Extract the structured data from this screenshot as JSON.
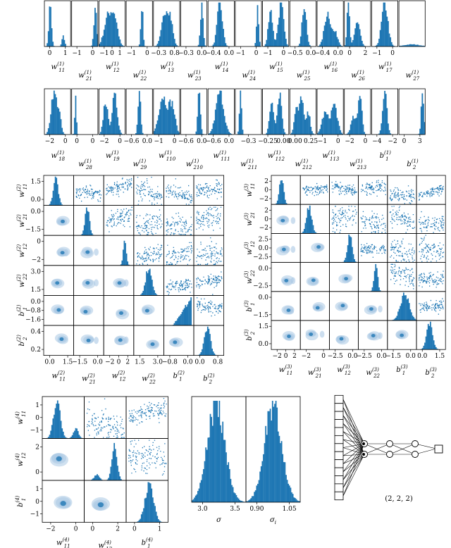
{
  "colors": {
    "bar": "#1f77b4",
    "density": "#aac8e4",
    "scatter": "#1f77b4"
  },
  "chart_data": [
    {
      "type": "histogram",
      "id": "layer1-row1",
      "panels": [
        {
          "label": "w",
          "sub": "11",
          "sup": "(1)",
          "ticks": [
            "0",
            "1"
          ]
        },
        {
          "label": "w",
          "sub": "21",
          "sup": "(1)",
          "ticks": [
            "−1",
            "0"
          ]
        },
        {
          "label": "w",
          "sub": "12",
          "sup": "(1)",
          "ticks": [
            "−1",
            "0",
            "1"
          ]
        },
        {
          "label": "w",
          "sub": "22",
          "sup": "(1)",
          "ticks": [
            "−1",
            "0"
          ]
        },
        {
          "label": "w",
          "sub": "13",
          "sup": "(1)",
          "ticks": [
            "−0.3",
            "0.8"
          ]
        },
        {
          "label": "w",
          "sub": "23",
          "sup": "(1)",
          "ticks": [
            "−0.3",
            "0.0"
          ]
        },
        {
          "label": "w",
          "sub": "14",
          "sup": "(1)",
          "ticks": [
            "−0.4",
            "0.0"
          ]
        },
        {
          "label": "w",
          "sub": "24",
          "sup": "(1)",
          "ticks": [
            "−1",
            "0"
          ]
        },
        {
          "label": "w",
          "sub": "15",
          "sup": "(1)",
          "ticks": [
            "−1",
            "0"
          ]
        },
        {
          "label": "w",
          "sub": "25",
          "sup": "(1)",
          "ticks": [
            "−0.5",
            "0.0"
          ]
        },
        {
          "label": "w",
          "sub": "16",
          "sup": "(1)",
          "ticks": [
            "−0.4",
            "0.0"
          ]
        },
        {
          "label": "w",
          "sub": "26",
          "sup": "(1)",
          "ticks": [
            "0",
            "2"
          ]
        },
        {
          "label": "w",
          "sub": "17",
          "sup": "(1)",
          "ticks": [
            "−1",
            "0"
          ]
        },
        {
          "label": "w",
          "sub": "27",
          "sup": "(1)",
          "ticks": []
        }
      ]
    },
    {
      "type": "histogram",
      "id": "layer1-row2",
      "panels": [
        {
          "label": "w",
          "sub": "18",
          "sup": "(1)",
          "ticks": [
            "−2",
            "0"
          ]
        },
        {
          "label": "w",
          "sub": "28",
          "sup": "(1)",
          "ticks": [
            "0",
            "0"
          ]
        },
        {
          "label": "w",
          "sub": "19",
          "sup": "(1)",
          "ticks": [
            "−2",
            "0"
          ]
        },
        {
          "label": "w",
          "sub": "29",
          "sup": "(1)",
          "ticks": [
            "−0.6",
            "0.0"
          ]
        },
        {
          "label": "w",
          "sub": "110",
          "sup": "(1)",
          "ticks": [
            "−1",
            "0"
          ]
        },
        {
          "label": "w",
          "sub": "210",
          "sup": "(1)",
          "ticks": [
            "−0.6",
            "0.0"
          ]
        },
        {
          "label": "w",
          "sub": "111",
          "sup": "(1)",
          "ticks": [
            "−0.6",
            "0.0"
          ]
        },
        {
          "label": "w",
          "sub": "211",
          "sup": "(1)",
          "ticks": [
            "−0.3"
          ]
        },
        {
          "label": "w",
          "sub": "112",
          "sup": "(1)",
          "ticks": [
            "−0.25",
            "0.00"
          ]
        },
        {
          "label": "w",
          "sub": "212",
          "sup": "(1)",
          "ticks": [
            "0.00",
            "0.25"
          ]
        },
        {
          "label": "w",
          "sub": "113",
          "sup": "(1)",
          "ticks": [
            "−1",
            "0"
          ]
        },
        {
          "label": "w",
          "sub": "213",
          "sup": "(1)",
          "ticks": [
            "−2",
            "0"
          ]
        },
        {
          "label": "b",
          "sub": "1",
          "sup": "(1)",
          "ticks": [
            "−4",
            "−2"
          ]
        },
        {
          "label": "b",
          "sub": "2",
          "sup": "(1)",
          "ticks": [
            "0",
            "3"
          ]
        }
      ]
    },
    {
      "type": "pairplot",
      "id": "layer2",
      "vars": [
        {
          "label": "w",
          "sub": "11",
          "sup": "(2)",
          "yticks": [
            "1.5",
            "0.0"
          ],
          "xticks": [
            "0.0",
            "1.5"
          ]
        },
        {
          "label": "w",
          "sub": "21",
          "sup": "(2)",
          "yticks": [
            "0.0",
            "−1.5"
          ],
          "xticks": [
            "−1.5",
            "0.0"
          ]
        },
        {
          "label": "w",
          "sub": "12",
          "sup": "(2)",
          "yticks": [
            "0",
            "−2"
          ],
          "xticks": [
            "−2",
            "0",
            "2"
          ]
        },
        {
          "label": "w",
          "sub": "22",
          "sup": "(2)",
          "yticks": [
            "3.0",
            "1.5"
          ],
          "xticks": [
            "1.5",
            "3.0"
          ]
        },
        {
          "label": "b",
          "sub": "1",
          "sup": "(2)",
          "yticks": [
            "0.0",
            "−0.8",
            "−1.6"
          ],
          "xticks": [
            "−0.8",
            "0.0"
          ]
        },
        {
          "label": "b",
          "sub": "2",
          "sup": "(2)",
          "yticks": [
            "0.4",
            "0.2"
          ],
          "xticks": [
            "0.0",
            "0.8"
          ]
        }
      ]
    },
    {
      "type": "pairplot",
      "id": "layer3",
      "vars": [
        {
          "label": "w",
          "sub": "11",
          "sup": "(3)",
          "yticks": [
            "2",
            "0",
            "−2"
          ],
          "xticks": [
            "−2",
            "0",
            "2"
          ]
        },
        {
          "label": "w",
          "sub": "21",
          "sup": "(3)",
          "yticks": [
            "2",
            "0",
            "−2"
          ],
          "xticks": [
            "−2",
            "0"
          ]
        },
        {
          "label": "w",
          "sub": "12",
          "sup": "(3)",
          "yticks": [
            "2.5",
            "0.0",
            "−2.5"
          ],
          "xticks": [
            "−2.5",
            "0.0"
          ]
        },
        {
          "label": "w",
          "sub": "22",
          "sup": "(3)",
          "yticks": [
            "0.0",
            "−2.5"
          ],
          "xticks": [
            "−2.5",
            "0.0"
          ]
        },
        {
          "label": "b",
          "sub": "1",
          "sup": "(3)",
          "yticks": [
            "0.0",
            "−1.5"
          ],
          "xticks": [
            "−1.5",
            "0.0"
          ]
        },
        {
          "label": "b",
          "sub": "2",
          "sup": "(3)",
          "yticks": [
            "1.5",
            "0.0"
          ],
          "xticks": [
            "0.0",
            "1.5"
          ]
        }
      ]
    },
    {
      "type": "pairplot",
      "id": "layer4",
      "vars": [
        {
          "label": "w",
          "sub": "11",
          "sup": "(4)",
          "yticks": [
            "1",
            "0",
            "−1"
          ],
          "xticks": [
            "−2",
            "0"
          ]
        },
        {
          "label": "w",
          "sub": "12",
          "sup": "(4)",
          "yticks": [
            "2",
            "0"
          ],
          "xticks": [
            "0",
            "2"
          ]
        },
        {
          "label": "b",
          "sub": "1",
          "sup": "(4)",
          "yticks": [
            "1",
            "0",
            "−1"
          ],
          "xticks": [
            "0",
            "1"
          ]
        }
      ]
    },
    {
      "type": "histogram",
      "id": "noise",
      "panels": [
        {
          "label": "σ",
          "sub": "",
          "sup": "",
          "ticks": [
            "3.0",
            "3.5"
          ]
        },
        {
          "label": "σ",
          "sub": "i",
          "sup": "",
          "ticks": [
            "0.90",
            "1.05"
          ]
        }
      ]
    }
  ],
  "diagram": {
    "caption": "(2, 2, 2)",
    "layers": [
      13,
      2,
      2,
      2,
      1
    ]
  }
}
